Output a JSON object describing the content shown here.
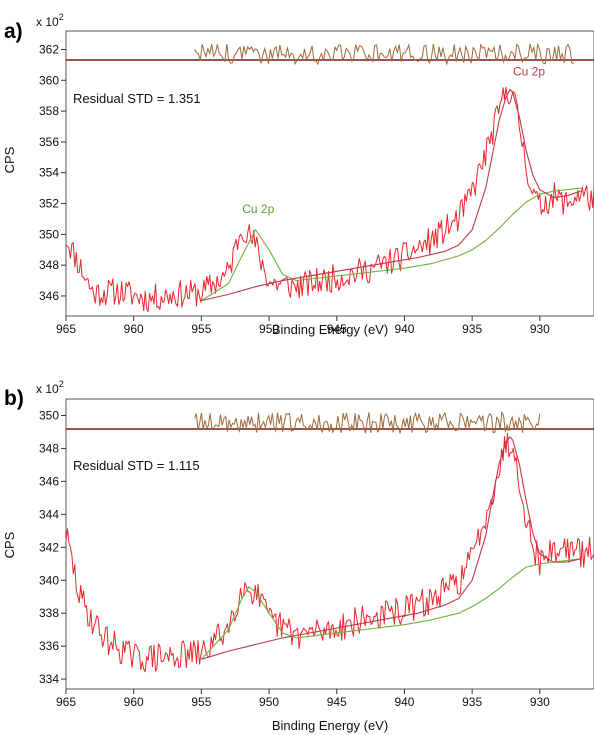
{
  "chart_data": [
    {
      "panel": "a)",
      "type": "line",
      "multiplier_base": "x 10",
      "multiplier_exp": "2",
      "xlabel": "Binding Energy (eV)",
      "ylabel": "CPS",
      "xlim": [
        965,
        926
      ],
      "ylim": [
        344.7,
        363.2
      ],
      "x_ticks": [
        965,
        960,
        955,
        950,
        945,
        940,
        935,
        930
      ],
      "y_ticks": [
        346,
        348,
        350,
        352,
        354,
        356,
        358,
        360,
        362
      ],
      "residual_label": "Residual STD = 1.351",
      "peak_labels": [
        {
          "text": "Cu 2p",
          "x": 930.8,
          "y": 360.3,
          "color": "#c0394b"
        },
        {
          "text": "Cu 2p",
          "x": 950.8,
          "y": 351.4,
          "color": "#5aa02c"
        }
      ],
      "residual_baseline": 361.5,
      "residual_range": [
        955.5,
        927.5
      ],
      "residual_amplitude": 0.6,
      "series": [
        {
          "role": "raw",
          "color": "#e8262c",
          "x": [
            965,
            963,
            961,
            959,
            957,
            955,
            953,
            952,
            951,
            950,
            948,
            946,
            944,
            942,
            940,
            938,
            936,
            935,
            934,
            933,
            932.5,
            932,
            931.5,
            931,
            930.5,
            930,
            929,
            928,
            927,
            926
          ],
          "y": [
            349.8,
            346.2,
            346.3,
            345.8,
            346.1,
            346.2,
            347.5,
            350.6,
            349.3,
            346.9,
            346.6,
            347.0,
            347.4,
            347.9,
            348.6,
            349.6,
            351.0,
            352.8,
            355.2,
            358.0,
            359.4,
            359.2,
            357.0,
            354.5,
            352.6,
            351.8,
            352.5,
            352.0,
            352.7,
            352.2
          ],
          "noise": 0.9
        },
        {
          "role": "fit",
          "color": "#c0394b",
          "x": [
            955,
            953,
            951,
            949,
            947,
            945,
            943,
            941,
            939,
            937,
            936,
            935,
            934,
            933.5,
            933,
            932.5,
            932.2,
            932,
            931.5,
            931,
            930.5,
            930,
            929,
            928,
            927
          ],
          "y": [
            345.7,
            346.1,
            346.6,
            347.0,
            347.3,
            347.6,
            347.9,
            348.2,
            348.5,
            348.9,
            349.3,
            350.3,
            353.0,
            355.2,
            357.4,
            358.9,
            359.4,
            359.2,
            357.6,
            355.4,
            353.8,
            352.9,
            352.4,
            352.5,
            352.8
          ]
        },
        {
          "role": "background",
          "color": "#6db33f",
          "x": [
            955,
            953,
            952,
            951,
            950,
            949,
            948,
            946,
            944,
            942,
            940,
            938,
            936,
            935,
            934,
            933,
            932,
            931,
            930,
            929,
            928,
            927
          ],
          "y": [
            345.7,
            346.8,
            348.6,
            350.3,
            349.0,
            347.4,
            347.0,
            347.2,
            347.4,
            347.6,
            347.8,
            348.1,
            348.6,
            349.0,
            349.6,
            350.4,
            351.3,
            352.1,
            352.6,
            352.8,
            352.9,
            353.0
          ]
        }
      ]
    },
    {
      "panel": "b)",
      "type": "line",
      "multiplier_base": "x 10",
      "multiplier_exp": "2",
      "xlabel": "Binding Energy (eV)",
      "ylabel": "CPS",
      "xlim": [
        965,
        926
      ],
      "ylim": [
        333.4,
        351.0
      ],
      "x_ticks": [
        965,
        960,
        955,
        950,
        945,
        940,
        935,
        930
      ],
      "y_ticks": [
        334,
        336,
        338,
        340,
        342,
        344,
        346,
        348,
        350
      ],
      "residual_label": "Residual STD = 1.115",
      "peak_labels": [],
      "residual_baseline": 349.3,
      "residual_range": [
        955.5,
        930
      ],
      "residual_amplitude": 0.6,
      "series": [
        {
          "role": "raw",
          "color": "#e8262c",
          "x": [
            965,
            964,
            963,
            962,
            960,
            958,
            956,
            955,
            953,
            952,
            951,
            950,
            948,
            946,
            944,
            942,
            940,
            938,
            936,
            935,
            934,
            933,
            932.5,
            932,
            931.5,
            931,
            930.5,
            930,
            929,
            928,
            927,
            926
          ],
          "y": [
            342.8,
            339.0,
            337.5,
            336.4,
            335.3,
            335.3,
            335.5,
            335.5,
            337.2,
            339.6,
            339.3,
            337.6,
            336.7,
            336.9,
            337.4,
            337.8,
            338.2,
            338.8,
            339.9,
            341.4,
            344.0,
            346.8,
            348.4,
            348.1,
            346.2,
            343.8,
            342.0,
            341.2,
            341.8,
            342.0,
            341.6,
            341.8
          ],
          "noise": 0.9
        },
        {
          "role": "fit",
          "color": "#c0394b",
          "x": [
            955,
            953,
            951,
            949,
            947,
            945,
            943,
            941,
            939,
            937,
            936,
            935,
            934,
            933.5,
            933,
            932.5,
            932.2,
            932,
            931.5,
            931,
            930.5,
            930,
            929,
            928,
            927
          ],
          "y": [
            335.2,
            335.7,
            336.1,
            336.5,
            336.8,
            337.1,
            337.4,
            337.7,
            338.0,
            338.5,
            338.9,
            340.0,
            342.7,
            345.0,
            347.1,
            348.4,
            348.7,
            348.5,
            347.0,
            344.8,
            342.8,
            341.6,
            341.1,
            341.1,
            341.3
          ]
        },
        {
          "role": "background",
          "color": "#6db33f",
          "x": [
            955,
            953,
            952,
            951.5,
            951,
            950,
            949,
            948,
            946,
            944,
            942,
            940,
            938,
            936,
            935,
            934,
            933,
            932,
            931,
            930,
            929,
            928,
            927
          ],
          "y": [
            335.2,
            337.0,
            338.9,
            339.6,
            339.3,
            338.0,
            336.8,
            336.5,
            336.7,
            336.9,
            337.1,
            337.3,
            337.6,
            338.0,
            338.4,
            338.9,
            339.5,
            340.2,
            340.8,
            341.0,
            341.1,
            341.2,
            341.3
          ]
        }
      ]
    }
  ]
}
